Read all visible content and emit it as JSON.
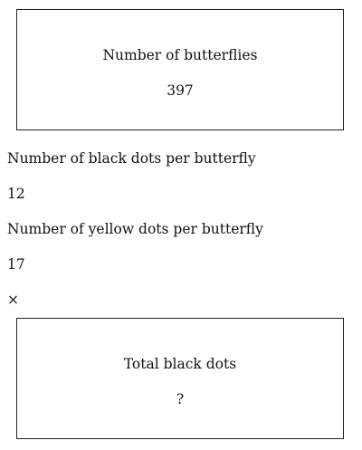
{
  "butterflies_box": {
    "label": "Number of butterflies",
    "value": "397"
  },
  "black_dots": {
    "label": "Number of black dots per butterfly",
    "value": "12"
  },
  "yellow_dots": {
    "label": "Number of yellow dots per butterfly",
    "value": "17"
  },
  "operator": "×",
  "total_box": {
    "label": "Total black dots",
    "value": "?"
  }
}
